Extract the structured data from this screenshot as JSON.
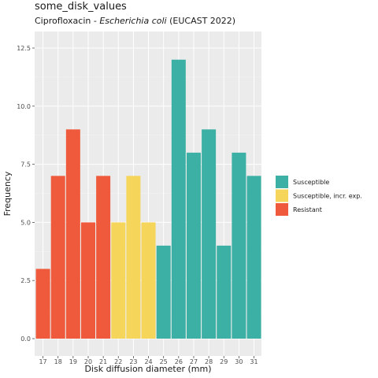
{
  "chart_data": {
    "type": "bar",
    "title": "some_disk_values",
    "subtitle": {
      "drug": "Ciprofloxacin - ",
      "organism": "Escherichia coli",
      "guideline": " (EUCAST 2022)"
    },
    "xlabel": "Disk diffusion diameter (mm)",
    "ylabel": "Frequency",
    "ylim": [
      0,
      12.5
    ],
    "yticks": [
      "0.0",
      "2.5",
      "5.0",
      "7.5",
      "10.0",
      "12.5"
    ],
    "grid": true,
    "legend_position": "right",
    "categories": [
      "17",
      "18",
      "19",
      "20",
      "21",
      "22",
      "23",
      "24",
      "25",
      "26",
      "27",
      "28",
      "29",
      "30",
      "31"
    ],
    "values": [
      3,
      7,
      9,
      5,
      7,
      5,
      7,
      5,
      4,
      12,
      8,
      9,
      4,
      8,
      7
    ],
    "interpretation": [
      "Resistant",
      "Resistant",
      "Resistant",
      "Resistant",
      "Resistant",
      "Susceptible, incr. exp.",
      "Susceptible, incr. exp.",
      "Susceptible, incr. exp.",
      "Susceptible",
      "Susceptible",
      "Susceptible",
      "Susceptible",
      "Susceptible",
      "Susceptible",
      "Susceptible"
    ],
    "legend": [
      {
        "label": "Susceptible",
        "color": "#3cb0a5"
      },
      {
        "label": "Susceptible, incr. exp.",
        "color": "#f5d55a"
      },
      {
        "label": "Resistant",
        "color": "#ee5a3b"
      }
    ]
  }
}
